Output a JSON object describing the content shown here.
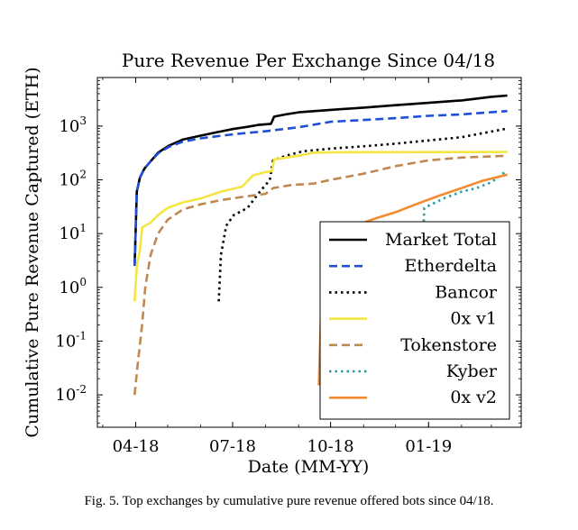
{
  "chart_data": {
    "type": "line",
    "title": "Pure Revenue Per Exchange Since 04/18",
    "xlabel": "Date (MM-YY)",
    "ylabel": "Cumulative Pure Revenue Captured (ETH)",
    "x_ticks": [
      "04-18",
      "07-18",
      "10-18",
      "01-19"
    ],
    "y_scale": "log",
    "y_ticks": [
      "10^-2",
      "10^-1",
      "10^0",
      "10^1",
      "10^2",
      "10^3"
    ],
    "xlim": [
      "2018-02-24",
      "2019-03-29"
    ],
    "ylim": [
      0.0025,
      8000
    ],
    "grid": false,
    "legend_position": "bottom-right",
    "series": [
      {
        "name": "Market Total",
        "color": "#000000",
        "dash": "solid",
        "points": [
          [
            "2018-03-31",
            2.5
          ],
          [
            "2018-04-02",
            60
          ],
          [
            "2018-04-05",
            110
          ],
          [
            "2018-04-09",
            160
          ],
          [
            "2018-04-14",
            210
          ],
          [
            "2018-04-22",
            320
          ],
          [
            "2018-05-02",
            430
          ],
          [
            "2018-05-15",
            560
          ],
          [
            "2018-05-30",
            650
          ],
          [
            "2018-06-15",
            760
          ],
          [
            "2018-07-01",
            880
          ],
          [
            "2018-07-15",
            970
          ],
          [
            "2018-07-25",
            1050
          ],
          [
            "2018-08-06",
            1100
          ],
          [
            "2018-08-09",
            1500
          ],
          [
            "2018-08-20",
            1650
          ],
          [
            "2018-09-01",
            1800
          ],
          [
            "2018-10-01",
            2000
          ],
          [
            "2018-11-01",
            2200
          ],
          [
            "2018-12-01",
            2450
          ],
          [
            "2019-01-01",
            2700
          ],
          [
            "2019-02-01",
            3000
          ],
          [
            "2019-03-01",
            3500
          ],
          [
            "2019-03-16",
            3700
          ]
        ]
      },
      {
        "name": "Etherdelta",
        "color": "#1f4fd6",
        "dash": "dashed",
        "points": [
          [
            "2018-03-31",
            2.5
          ],
          [
            "2018-04-02",
            60
          ],
          [
            "2018-04-05",
            110
          ],
          [
            "2018-04-09",
            160
          ],
          [
            "2018-04-14",
            210
          ],
          [
            "2018-04-22",
            310
          ],
          [
            "2018-05-02",
            410
          ],
          [
            "2018-05-15",
            510
          ],
          [
            "2018-06-01",
            590
          ],
          [
            "2018-06-20",
            660
          ],
          [
            "2018-07-10",
            730
          ],
          [
            "2018-08-01",
            800
          ],
          [
            "2018-09-01",
            950
          ],
          [
            "2018-10-01",
            1200
          ],
          [
            "2018-11-01",
            1300
          ],
          [
            "2018-12-01",
            1400
          ],
          [
            "2019-01-01",
            1550
          ],
          [
            "2019-02-01",
            1650
          ],
          [
            "2019-03-16",
            1900
          ]
        ]
      },
      {
        "name": "Bancor",
        "color": "#000000",
        "dash": "dotted",
        "points": [
          [
            "2018-06-18",
            0.55
          ],
          [
            "2018-06-20",
            4
          ],
          [
            "2018-06-25",
            14
          ],
          [
            "2018-07-02",
            22
          ],
          [
            "2018-07-15",
            30
          ],
          [
            "2018-07-25",
            55
          ],
          [
            "2018-08-05",
            100
          ],
          [
            "2018-08-08",
            230
          ],
          [
            "2018-08-20",
            280
          ],
          [
            "2018-09-05",
            340
          ],
          [
            "2018-10-01",
            380
          ],
          [
            "2018-11-01",
            420
          ],
          [
            "2018-12-01",
            470
          ],
          [
            "2019-01-01",
            540
          ],
          [
            "2019-02-01",
            620
          ],
          [
            "2019-03-16",
            900
          ]
        ]
      },
      {
        "name": "0x v1",
        "color": "#f4e542",
        "dash": "solid",
        "points": [
          [
            "2018-03-31",
            0.55
          ],
          [
            "2018-04-02",
            2.5
          ],
          [
            "2018-04-05",
            5
          ],
          [
            "2018-04-07",
            13
          ],
          [
            "2018-04-15",
            16
          ],
          [
            "2018-04-22",
            22
          ],
          [
            "2018-05-01",
            30
          ],
          [
            "2018-05-15",
            38
          ],
          [
            "2018-06-01",
            45
          ],
          [
            "2018-06-20",
            60
          ],
          [
            "2018-07-10",
            75
          ],
          [
            "2018-07-20",
            120
          ],
          [
            "2018-08-01",
            140
          ],
          [
            "2018-08-07",
            145
          ],
          [
            "2018-08-09",
            240
          ],
          [
            "2018-09-01",
            280
          ],
          [
            "2018-09-15",
            320
          ],
          [
            "2018-10-01",
            325
          ],
          [
            "2019-03-16",
            330
          ]
        ]
      },
      {
        "name": "Tokenstore",
        "color": "#c08850",
        "dash": "dashed",
        "points": [
          [
            "2018-03-31",
            0.01
          ],
          [
            "2018-04-03",
            0.04
          ],
          [
            "2018-04-07",
            0.2
          ],
          [
            "2018-04-10",
            1
          ],
          [
            "2018-04-15",
            4
          ],
          [
            "2018-04-22",
            10
          ],
          [
            "2018-05-01",
            18
          ],
          [
            "2018-05-15",
            28
          ],
          [
            "2018-06-01",
            35
          ],
          [
            "2018-06-20",
            42
          ],
          [
            "2018-07-10",
            48
          ],
          [
            "2018-08-01",
            55
          ],
          [
            "2018-08-08",
            70
          ],
          [
            "2018-08-25",
            80
          ],
          [
            "2018-09-15",
            85
          ],
          [
            "2018-10-01",
            100
          ],
          [
            "2018-11-01",
            130
          ],
          [
            "2018-12-01",
            180
          ],
          [
            "2019-01-01",
            230
          ],
          [
            "2019-02-01",
            260
          ],
          [
            "2019-03-16",
            280
          ]
        ]
      },
      {
        "name": "Kyber",
        "color": "#2a9d9d",
        "dash": "dotted",
        "points": [
          [
            "2018-12-25",
            0.5
          ],
          [
            "2018-12-28",
            30
          ],
          [
            "2019-01-15",
            45
          ],
          [
            "2019-02-01",
            60
          ],
          [
            "2019-02-15",
            70
          ],
          [
            "2019-03-01",
            90
          ],
          [
            "2019-03-16",
            150
          ]
        ]
      },
      {
        "name": "0x v2",
        "color": "#f28a2e",
        "dash": "solid",
        "points": [
          [
            "2018-09-20",
            0.015
          ],
          [
            "2018-09-22",
            0.35
          ],
          [
            "2018-09-25",
            1.2
          ],
          [
            "2018-10-01",
            6
          ],
          [
            "2018-10-10",
            11
          ],
          [
            "2018-10-20",
            13
          ],
          [
            "2018-11-01",
            16
          ],
          [
            "2018-11-15",
            20
          ],
          [
            "2018-12-01",
            25
          ],
          [
            "2018-12-20",
            35
          ],
          [
            "2019-01-10",
            50
          ],
          [
            "2019-02-01",
            70
          ],
          [
            "2019-02-20",
            95
          ],
          [
            "2019-03-16",
            125
          ]
        ]
      }
    ]
  },
  "caption": "Fig. 5.  Top exchanges by cumulative pure revenue offered bots since 04/18."
}
